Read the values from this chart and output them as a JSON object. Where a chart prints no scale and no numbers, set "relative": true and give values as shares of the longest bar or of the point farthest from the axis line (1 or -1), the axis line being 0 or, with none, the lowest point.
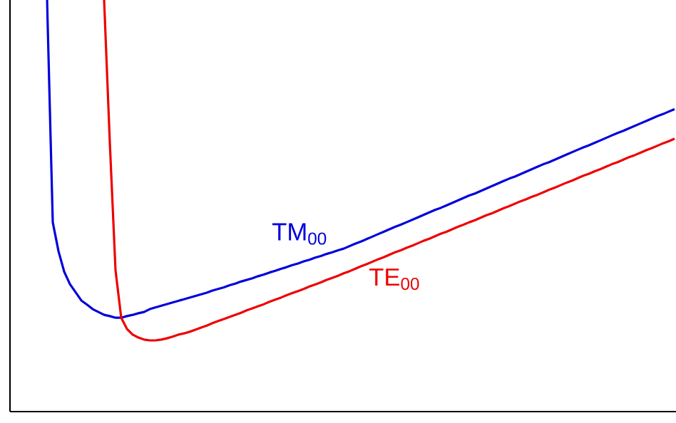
{
  "chart_data": {
    "type": "line",
    "relative": true,
    "tick_labels": false,
    "categories": [
      null,
      null,
      null,
      null,
      null,
      null,
      null,
      null,
      null,
      null,
      null,
      null,
      null,
      null,
      null,
      null,
      null,
      null,
      null,
      null,
      null,
      null,
      null,
      null,
      null,
      null,
      null,
      null,
      null,
      null,
      null,
      null,
      null,
      null,
      null,
      null,
      null,
      null,
      null,
      null,
      null,
      null,
      null,
      null,
      null,
      null,
      null,
      null,
      null,
      null,
      null,
      null,
      null,
      null,
      null,
      null,
      null,
      null,
      null,
      null,
      null,
      null,
      null,
      null,
      null,
      null,
      null,
      null,
      null,
      null,
      null,
      null,
      null,
      null,
      null,
      null,
      null,
      null,
      null,
      null,
      null,
      null,
      null,
      null,
      null,
      null,
      null,
      null,
      null,
      null,
      null,
      null,
      null,
      null,
      null,
      null,
      null,
      null,
      null,
      null,
      null,
      null,
      null,
      null,
      null,
      null,
      null,
      null,
      null,
      null,
      null,
      null,
      null,
      null,
      null,
      null,
      null
    ],
    "series": [
      {
        "name": "TM$_{00}$",
        "color": "#0000dd",
        "values": [
          null,
          null,
          null,
          null,
          null,
          null,
          1.0,
          0.46,
          0.39,
          0.34,
          0.31,
          0.29,
          0.27,
          0.26,
          0.249,
          0.242,
          0.235,
          0.232,
          0.228,
          0.228,
          0.232,
          0.235,
          0.239,
          0.242,
          0.249,
          0.253,
          0.257,
          0.261,
          0.265,
          0.269,
          0.273,
          0.277,
          0.281,
          0.285,
          0.289,
          0.294,
          0.298,
          0.302,
          0.307,
          0.311,
          0.316,
          0.32,
          0.324,
          0.329,
          0.333,
          0.338,
          0.342,
          0.347,
          0.351,
          0.356,
          0.36,
          0.365,
          0.369,
          0.374,
          0.378,
          0.383,
          0.387,
          0.392,
          0.396,
          0.402,
          0.408,
          0.413,
          0.419,
          0.425,
          0.431,
          0.437,
          0.443,
          0.449,
          0.454,
          0.46,
          0.466,
          0.472,
          0.478,
          0.484,
          0.49,
          0.495,
          0.501,
          0.507,
          0.513,
          0.519,
          0.525,
          0.53,
          0.536,
          0.542,
          0.548,
          0.554,
          0.56,
          0.566,
          0.571,
          0.577,
          0.583,
          0.589,
          0.595,
          0.601,
          0.606,
          0.612,
          0.618,
          0.624,
          0.63,
          0.636,
          0.642,
          0.647,
          0.653,
          0.659,
          0.665,
          0.671,
          0.677,
          0.682,
          0.688,
          0.694,
          0.7,
          0.706,
          0.712,
          0.718,
          0.723,
          0.729,
          0.735
        ]
      },
      {
        "name": "TE$_{00}$",
        "color": "#ee0000",
        "values": [
          null,
          null,
          null,
          null,
          null,
          null,
          null,
          null,
          null,
          null,
          null,
          null,
          null,
          null,
          null,
          null,
          1.0,
          0.654,
          0.343,
          0.228,
          0.201,
          0.187,
          0.18,
          0.175,
          0.173,
          0.173,
          0.175,
          0.178,
          0.182,
          0.187,
          0.19,
          0.194,
          0.199,
          0.204,
          0.209,
          0.215,
          0.22,
          0.225,
          0.23,
          0.235,
          0.24,
          0.246,
          0.251,
          0.256,
          0.261,
          0.267,
          0.272,
          0.277,
          0.283,
          0.288,
          0.293,
          0.298,
          0.304,
          0.309,
          0.314,
          0.32,
          0.325,
          0.33,
          0.336,
          0.341,
          0.347,
          0.353,
          0.358,
          0.364,
          0.37,
          0.375,
          0.381,
          0.387,
          0.392,
          0.398,
          0.403,
          0.409,
          0.415,
          0.42,
          0.426,
          0.432,
          0.437,
          0.443,
          0.449,
          0.454,
          0.46,
          0.465,
          0.471,
          0.477,
          0.482,
          0.488,
          0.494,
          0.499,
          0.505,
          0.511,
          0.516,
          0.522,
          0.527,
          0.533,
          0.539,
          0.544,
          0.55,
          0.556,
          0.561,
          0.567,
          0.573,
          0.578,
          0.584,
          0.589,
          0.595,
          0.601,
          0.606,
          0.612,
          0.618,
          0.623,
          0.629,
          0.635,
          0.64,
          0.646,
          0.652,
          0.657,
          0.663
        ]
      }
    ]
  }
}
